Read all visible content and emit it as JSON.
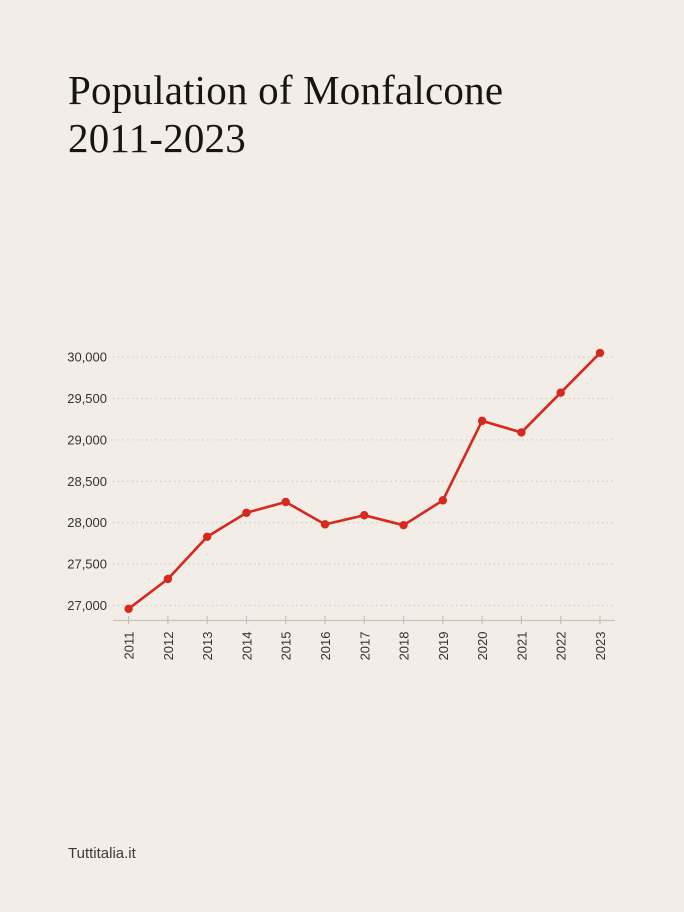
{
  "page": {
    "background_color": "#f2ede7",
    "title_lines": [
      "Population of Monfalcone",
      "2011-2023"
    ],
    "source_label": "Tuttitalia.it"
  },
  "chart_data": {
    "type": "line",
    "title": "Population of Monfalcone 2011-2023",
    "categories": [
      "2011",
      "2012",
      "2013",
      "2014",
      "2015",
      "2016",
      "2017",
      "2018",
      "2019",
      "2020",
      "2021",
      "2022",
      "2023"
    ],
    "series": [
      {
        "name": "Population of Monfalcone",
        "values": [
          26960,
          27320,
          27830,
          28120,
          28250,
          27980,
          28090,
          27970,
          28270,
          29230,
          29090,
          29570,
          30050
        ]
      }
    ],
    "y_ticks": [
      {
        "value": 27000,
        "label": "27,000"
      },
      {
        "value": 27500,
        "label": "27,500"
      },
      {
        "value": 28000,
        "label": "28,000"
      },
      {
        "value": 28500,
        "label": "28,500"
      },
      {
        "value": 29000,
        "label": "29,000"
      },
      {
        "value": 29500,
        "label": "29,500"
      },
      {
        "value": 30000,
        "label": "30,000"
      }
    ],
    "ylim": [
      26900,
      30150
    ],
    "xlabel": "",
    "ylabel": "",
    "grid": "horizontal-dotted",
    "legend_position": "none",
    "line_color": "#d6281c",
    "point_color": "#d6281c",
    "grid_color": "#d7d1ca",
    "axis_color": "#c7c1ba",
    "tick_label_color": "#343230"
  }
}
